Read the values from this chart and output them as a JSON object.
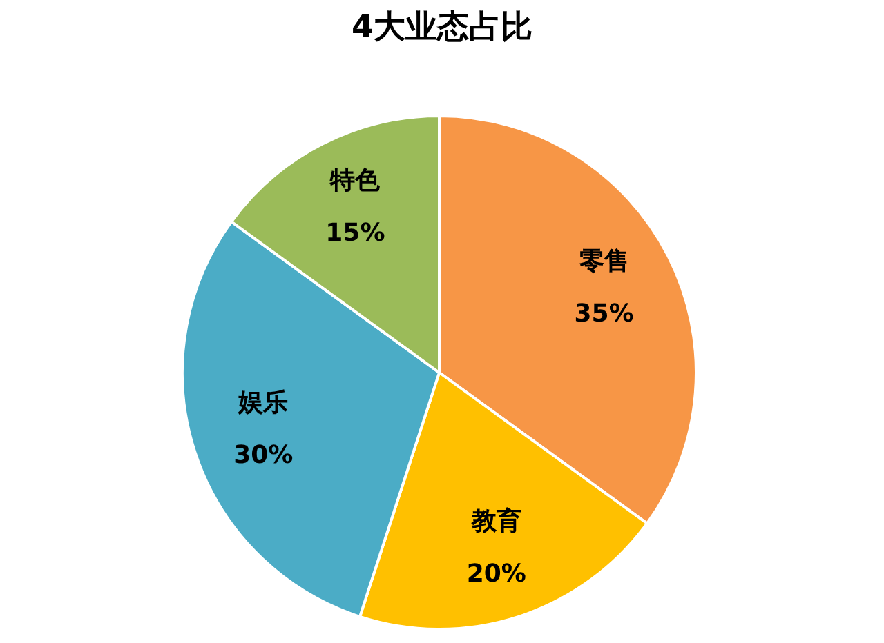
{
  "chart_data": {
    "type": "pie",
    "title": "4大业态占比",
    "categories": [
      "零售",
      "教育",
      "娱乐",
      "特色"
    ],
    "values": [
      35,
      20,
      30,
      15
    ],
    "colors": [
      "#f79646",
      "#ffc000",
      "#4bacc6",
      "#9bbb59"
    ],
    "value_labels": [
      "35%",
      "20%",
      "30%",
      "15%"
    ]
  }
}
